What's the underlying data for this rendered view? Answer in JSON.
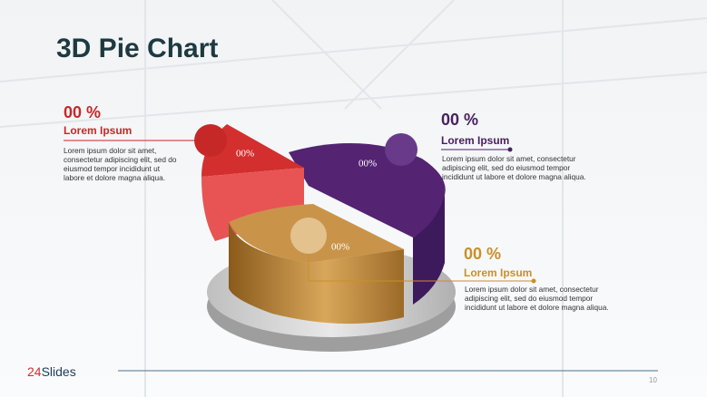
{
  "title": "3D Pie Chart",
  "callouts": [
    {
      "value": "00 %",
      "heading": "Lorem Ipsum",
      "body": [
        "Lorem ipsum dolor sit amet,",
        "consectetur adipiscing elit, sed do",
        "eiusmod tempor incididunt ut",
        "labore et dolore magna aliqua."
      ]
    },
    {
      "value": "00 %",
      "heading": "Lorem Ipsum",
      "body": [
        "Lorem ipsum dolor sit amet, consectetur",
        "adipiscing elit, sed do eiusmod tempor",
        "incididunt ut labore et dolore magna aliqua."
      ]
    },
    {
      "value": "00 %",
      "heading": "Lorem Ipsum",
      "body": [
        "Lorem ipsum dolor sit amet, consectetur",
        "adipiscing elit, sed do eiusmod tempor",
        "incididunt ut labore et dolore magna aliqua."
      ]
    }
  ],
  "pie_labels": [
    "00%",
    "00%",
    "00%"
  ],
  "logo": {
    "number": "24",
    "text": "Slides"
  },
  "page_number": "10"
}
